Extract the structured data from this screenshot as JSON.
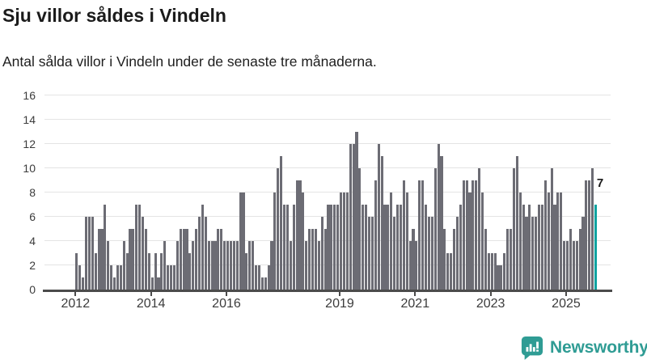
{
  "header": {
    "title": "Sju villor såldes i Vindeln",
    "subtitle": "Antal sålda villor i Vindeln under de senaste tre månaderna."
  },
  "chart_data": {
    "type": "bar",
    "title": "Sju villor såldes i Vindeln",
    "subtitle": "Antal sålda villor i Vindeln under de senaste tre månaderna.",
    "x_axis": {
      "start": "2012-01",
      "end": "2025-10",
      "interval": "monthly"
    },
    "ylim": [
      0,
      16
    ],
    "y_ticks": [
      0,
      2,
      4,
      6,
      8,
      10,
      12,
      14,
      16
    ],
    "x_ticks": [
      {
        "label": "2012",
        "month_index": 0
      },
      {
        "label": "2014",
        "month_index": 24
      },
      {
        "label": "2016",
        "month_index": 48
      },
      {
        "label": "2019",
        "month_index": 84
      },
      {
        "label": "2021",
        "month_index": 108
      },
      {
        "label": "2023",
        "month_index": 132
      },
      {
        "label": "2025",
        "month_index": 156
      }
    ],
    "values": [
      3,
      2,
      1,
      6,
      6,
      6,
      3,
      5,
      5,
      7,
      4,
      2,
      1,
      2,
      2,
      4,
      3,
      5,
      5,
      7,
      7,
      6,
      5,
      3,
      1,
      3,
      1,
      3,
      4,
      2,
      2,
      2,
      4,
      5,
      5,
      5,
      3,
      4,
      5,
      6,
      7,
      6,
      4,
      4,
      4,
      5,
      5,
      4,
      4,
      4,
      4,
      4,
      8,
      8,
      3,
      4,
      4,
      2,
      2,
      1,
      1,
      2,
      4,
      8,
      10,
      11,
      7,
      7,
      4,
      7,
      9,
      9,
      8,
      4,
      5,
      5,
      5,
      4,
      6,
      5,
      7,
      7,
      7,
      7,
      8,
      8,
      8,
      12,
      12,
      13,
      10,
      7,
      7,
      6,
      6,
      9,
      12,
      11,
      7,
      7,
      8,
      6,
      7,
      7,
      9,
      8,
      4,
      5,
      4,
      9,
      9,
      7,
      6,
      6,
      10,
      12,
      11,
      5,
      3,
      3,
      5,
      6,
      7,
      9,
      9,
      8,
      9,
      9,
      10,
      8,
      5,
      3,
      3,
      3,
      2,
      2,
      3,
      5,
      5,
      10,
      11,
      8,
      7,
      6,
      7,
      6,
      6,
      7,
      7,
      9,
      8,
      10,
      7,
      8,
      8,
      4,
      4,
      5,
      4,
      4,
      5,
      6,
      9,
      9,
      10,
      7
    ],
    "bar_color": "#6c6c74",
    "highlight_last_color": "#0aa2a0",
    "annotation": {
      "text": "7"
    },
    "grid": true,
    "legend": "none"
  },
  "footer": {
    "brand": "Newsworthy",
    "brand_color": "#2f9c94",
    "logo_icon": "bar-chart-speech-bubble-icon"
  }
}
